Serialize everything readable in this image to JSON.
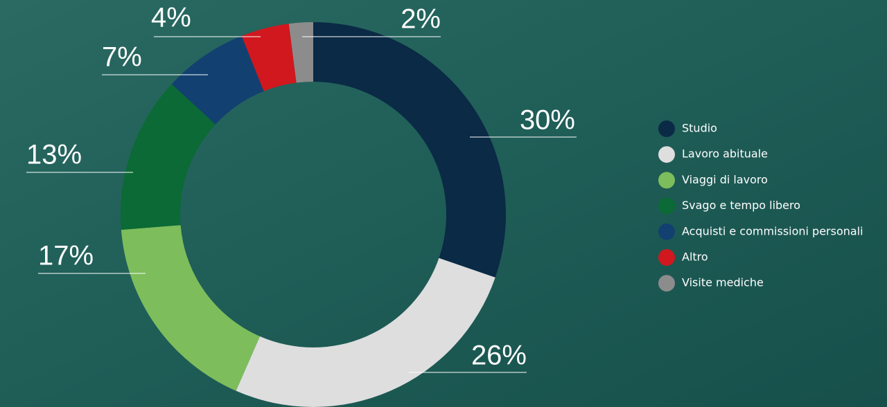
{
  "chart_data": {
    "type": "donut",
    "categories": [
      "Studio",
      "Lavoro abituale",
      "Viaggi di lavoro",
      "Svago e tempo libero",
      "Acquisti e commissioni personali",
      "Altro",
      "Visite mediche"
    ],
    "values": [
      30,
      26,
      17,
      13,
      7,
      4,
      2
    ],
    "value_labels": [
      "30%",
      "26%",
      "17%",
      "13%",
      "7%",
      "4%",
      "2%"
    ],
    "colors": [
      "#0a2a45",
      "#dedede",
      "#7dbd5c",
      "#0b6a35",
      "#124070",
      "#d0181e",
      "#8c8c8c"
    ],
    "legend": "right"
  }
}
